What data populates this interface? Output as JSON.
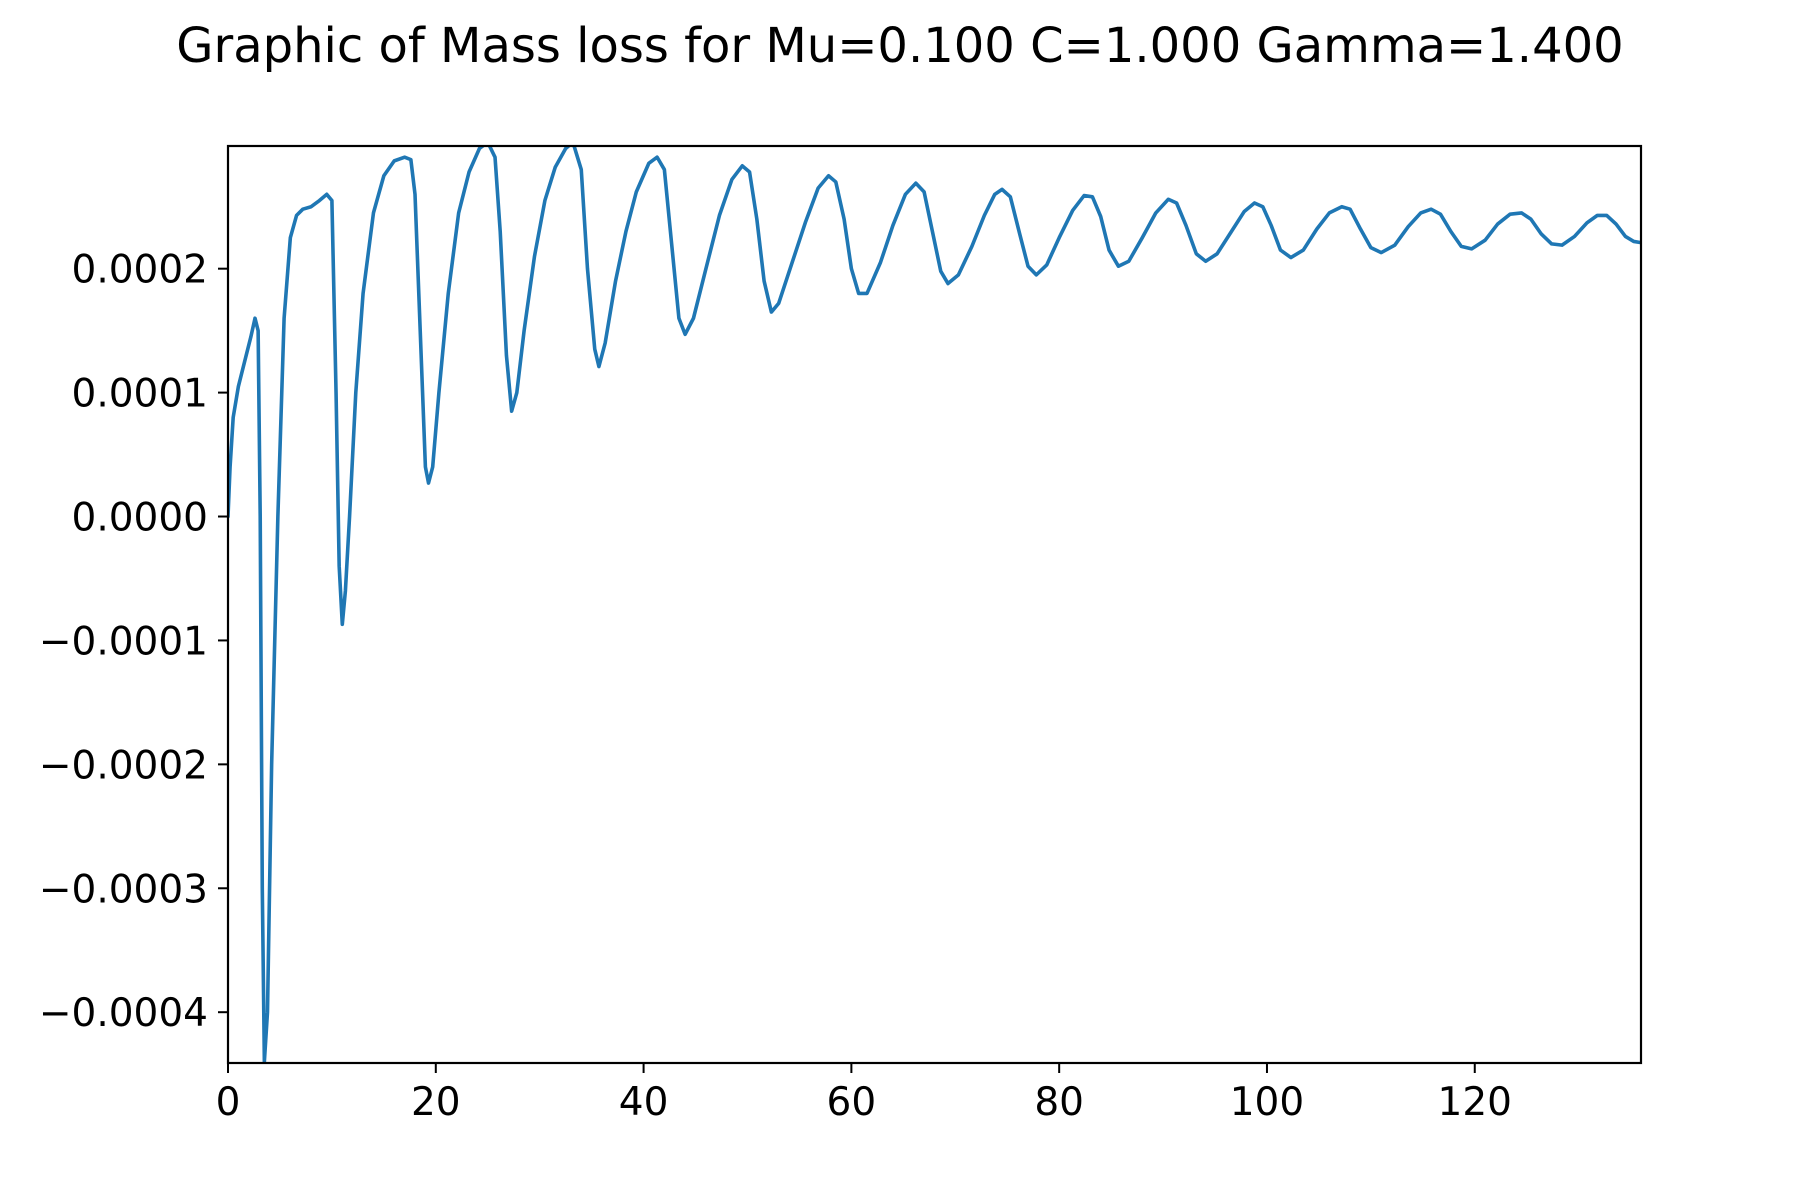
{
  "chart_data": {
    "type": "line",
    "title": "Graphic of Mass loss for Mu=0.100 C=1.000 Gamma=1.400",
    "xlabel": "",
    "ylabel": "",
    "xlim": [
      0,
      136
    ],
    "ylim": [
      -0.000441,
      0.000299
    ],
    "grid": false,
    "legend": "none",
    "x_ticks": [
      {
        "value": 0,
        "label": "0"
      },
      {
        "value": 20,
        "label": "20"
      },
      {
        "value": 40,
        "label": "40"
      },
      {
        "value": 60,
        "label": "60"
      },
      {
        "value": 80,
        "label": "80"
      },
      {
        "value": 100,
        "label": "100"
      },
      {
        "value": 120,
        "label": "120"
      }
    ],
    "y_ticks": [
      {
        "value": 0.0002,
        "label": "0.0002"
      },
      {
        "value": 0.0001,
        "label": "0.0001"
      },
      {
        "value": 0.0,
        "label": "0.0000"
      },
      {
        "value": -0.0001,
        "label": "−0.0001"
      },
      {
        "value": -0.0002,
        "label": "−0.0002"
      },
      {
        "value": -0.0003,
        "label": "−0.0003"
      },
      {
        "value": -0.0004,
        "label": "−0.0004"
      }
    ],
    "series": [
      {
        "color": "#1f77b4",
        "points": [
          [
            0,
            0.0
          ],
          [
            0.2,
            4e-05
          ],
          [
            0.5,
            8e-05
          ],
          [
            1.0,
            0.000105
          ],
          [
            1.6,
            0.000125
          ],
          [
            2.2,
            0.000145
          ],
          [
            2.6,
            0.00016
          ],
          [
            2.9,
            0.00015
          ],
          [
            3.1,
            0.0
          ],
          [
            3.3,
            -0.0003
          ],
          [
            3.5,
            -0.00044
          ],
          [
            3.8,
            -0.0004
          ],
          [
            4.2,
            -0.0002
          ],
          [
            4.8,
            0.0
          ],
          [
            5.4,
            0.00016
          ],
          [
            6.0,
            0.000225
          ],
          [
            6.6,
            0.000243
          ],
          [
            7.2,
            0.000248
          ],
          [
            8.0,
            0.00025
          ],
          [
            8.8,
            0.000255
          ],
          [
            9.5,
            0.00026
          ],
          [
            10.0,
            0.000255
          ],
          [
            10.4,
            0.0001
          ],
          [
            10.7,
            -4e-05
          ],
          [
            11.0,
            -8.7e-05
          ],
          [
            11.3,
            -6e-05
          ],
          [
            11.7,
            0.0
          ],
          [
            12.3,
            0.0001
          ],
          [
            13.0,
            0.00018
          ],
          [
            14.0,
            0.000245
          ],
          [
            15.0,
            0.000275
          ],
          [
            16.0,
            0.000287
          ],
          [
            17.0,
            0.00029
          ],
          [
            17.6,
            0.000288
          ],
          [
            18.0,
            0.00026
          ],
          [
            18.5,
            0.00015
          ],
          [
            19.0,
            4e-05
          ],
          [
            19.3,
            2.7e-05
          ],
          [
            19.7,
            4e-05
          ],
          [
            20.3,
            0.0001
          ],
          [
            21.2,
            0.00018
          ],
          [
            22.2,
            0.000245
          ],
          [
            23.2,
            0.000278
          ],
          [
            24.2,
            0.000297
          ],
          [
            25.0,
            0.000302
          ],
          [
            25.7,
            0.00029
          ],
          [
            26.2,
            0.00023
          ],
          [
            26.8,
            0.00013
          ],
          [
            27.3,
            8.5e-05
          ],
          [
            27.8,
            0.0001
          ],
          [
            28.5,
            0.00015
          ],
          [
            29.5,
            0.00021
          ],
          [
            30.5,
            0.000255
          ],
          [
            31.5,
            0.000282
          ],
          [
            32.5,
            0.000297
          ],
          [
            33.2,
            0.000302
          ],
          [
            34.0,
            0.00028
          ],
          [
            34.6,
            0.0002
          ],
          [
            35.3,
            0.000135
          ],
          [
            35.7,
            0.000121
          ],
          [
            36.3,
            0.00014
          ],
          [
            37.3,
            0.00019
          ],
          [
            38.3,
            0.00023
          ],
          [
            39.3,
            0.000262
          ],
          [
            40.5,
            0.000285
          ],
          [
            41.3,
            0.00029
          ],
          [
            42.0,
            0.00028
          ],
          [
            42.7,
            0.00022
          ],
          [
            43.4,
            0.00016
          ],
          [
            44.0,
            0.000147
          ],
          [
            44.8,
            0.00016
          ],
          [
            46.0,
            0.0002
          ],
          [
            47.3,
            0.000243
          ],
          [
            48.5,
            0.000272
          ],
          [
            49.5,
            0.000283
          ],
          [
            50.2,
            0.000278
          ],
          [
            50.9,
            0.00024
          ],
          [
            51.6,
            0.00019
          ],
          [
            52.3,
            0.000165
          ],
          [
            53.0,
            0.000172
          ],
          [
            54.3,
            0.000205
          ],
          [
            55.6,
            0.000238
          ],
          [
            56.8,
            0.000265
          ],
          [
            57.8,
            0.000275
          ],
          [
            58.5,
            0.00027
          ],
          [
            59.3,
            0.00024
          ],
          [
            60.0,
            0.0002
          ],
          [
            60.7,
            0.00018
          ],
          [
            61.5,
            0.00018
          ],
          [
            62.8,
            0.000205
          ],
          [
            64.0,
            0.000235
          ],
          [
            65.2,
            0.00026
          ],
          [
            66.2,
            0.000269
          ],
          [
            67.0,
            0.000262
          ],
          [
            67.8,
            0.00023
          ],
          [
            68.6,
            0.000198
          ],
          [
            69.3,
            0.000188
          ],
          [
            70.3,
            0.000195
          ],
          [
            71.6,
            0.000218
          ],
          [
            72.8,
            0.000243
          ],
          [
            73.8,
            0.00026
          ],
          [
            74.5,
            0.000264
          ],
          [
            75.3,
            0.000258
          ],
          [
            76.2,
            0.000228
          ],
          [
            77.0,
            0.000202
          ],
          [
            77.8,
            0.000195
          ],
          [
            78.8,
            0.000203
          ],
          [
            80.0,
            0.000225
          ],
          [
            81.3,
            0.000247
          ],
          [
            82.4,
            0.000259
          ],
          [
            83.2,
            0.000258
          ],
          [
            84.0,
            0.000242
          ],
          [
            84.8,
            0.000215
          ],
          [
            85.7,
            0.000202
          ],
          [
            86.7,
            0.000206
          ],
          [
            88.0,
            0.000225
          ],
          [
            89.3,
            0.000245
          ],
          [
            90.5,
            0.000256
          ],
          [
            91.3,
            0.000253
          ],
          [
            92.2,
            0.000235
          ],
          [
            93.2,
            0.000212
          ],
          [
            94.1,
            0.000206
          ],
          [
            95.2,
            0.000212
          ],
          [
            96.5,
            0.000229
          ],
          [
            97.8,
            0.000246
          ],
          [
            98.8,
            0.000253
          ],
          [
            99.6,
            0.00025
          ],
          [
            100.4,
            0.000235
          ],
          [
            101.3,
            0.000215
          ],
          [
            102.3,
            0.000209
          ],
          [
            103.5,
            0.000215
          ],
          [
            104.8,
            0.000232
          ],
          [
            106.0,
            0.000245
          ],
          [
            107.2,
            0.00025
          ],
          [
            108.0,
            0.000248
          ],
          [
            109.0,
            0.000232
          ],
          [
            110.0,
            0.000217
          ],
          [
            111.0,
            0.000213
          ],
          [
            112.3,
            0.000219
          ],
          [
            113.6,
            0.000234
          ],
          [
            114.8,
            0.000245
          ],
          [
            115.8,
            0.000248
          ],
          [
            116.7,
            0.000244
          ],
          [
            117.7,
            0.00023
          ],
          [
            118.7,
            0.000218
          ],
          [
            119.7,
            0.000216
          ],
          [
            121.0,
            0.000223
          ],
          [
            122.2,
            0.000236
          ],
          [
            123.4,
            0.000244
          ],
          [
            124.5,
            0.000245
          ],
          [
            125.4,
            0.00024
          ],
          [
            126.4,
            0.000228
          ],
          [
            127.4,
            0.00022
          ],
          [
            128.4,
            0.000219
          ],
          [
            129.6,
            0.000226
          ],
          [
            130.8,
            0.000237
          ],
          [
            131.8,
            0.000243
          ],
          [
            132.7,
            0.000243
          ],
          [
            133.6,
            0.000236
          ],
          [
            134.5,
            0.000226
          ],
          [
            135.3,
            0.000222
          ],
          [
            136.0,
            0.000221
          ]
        ]
      }
    ]
  }
}
